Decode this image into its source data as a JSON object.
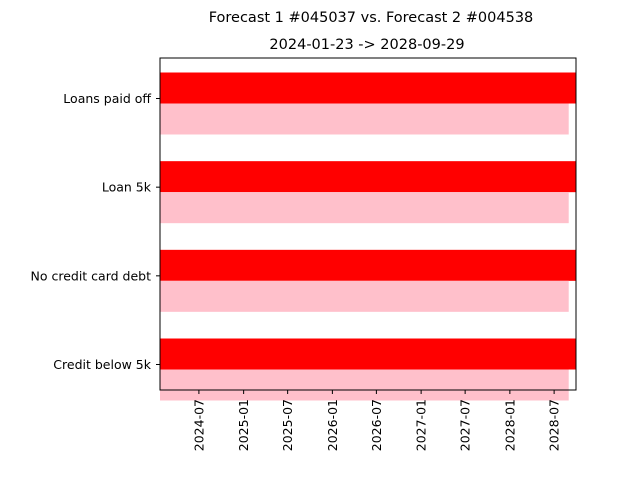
{
  "chart_data": {
    "type": "bar",
    "orientation": "horizontal",
    "title": "Forecast 1 #045037 vs. Forecast 2 #004538",
    "subtitle": "2024-01-23 -> 2028-09-29",
    "x_axis": {
      "type": "date",
      "range": [
        "2024-01-23",
        "2028-09-29"
      ],
      "tick_labels": [
        "2024-07",
        "2025-01",
        "2025-07",
        "2026-01",
        "2026-07",
        "2027-01",
        "2027-07",
        "2028-01",
        "2028-07"
      ],
      "tick_rotation": 90
    },
    "categories": [
      "Loans paid off",
      "Loan 5k",
      "No credit card debt",
      "Credit below 5k"
    ],
    "series": [
      {
        "color": "#ff0000",
        "bars": [
          {
            "start": "2024-01-23",
            "end": "2028-09-29"
          },
          {
            "start": "2024-01-23",
            "end": "2028-09-29"
          },
          {
            "start": "2024-01-23",
            "end": "2028-09-29"
          },
          {
            "start": "2024-01-23",
            "end": "2028-09-29"
          }
        ]
      },
      {
        "color": "#ffc0cb",
        "bars": [
          {
            "start": "2024-01-23",
            "end": "2028-08-30"
          },
          {
            "start": "2024-01-23",
            "end": "2028-08-30"
          },
          {
            "start": "2024-01-23",
            "end": "2028-08-30"
          },
          {
            "start": "2024-01-23",
            "end": "2028-08-30"
          }
        ]
      }
    ],
    "grid": false,
    "legend": "none"
  }
}
